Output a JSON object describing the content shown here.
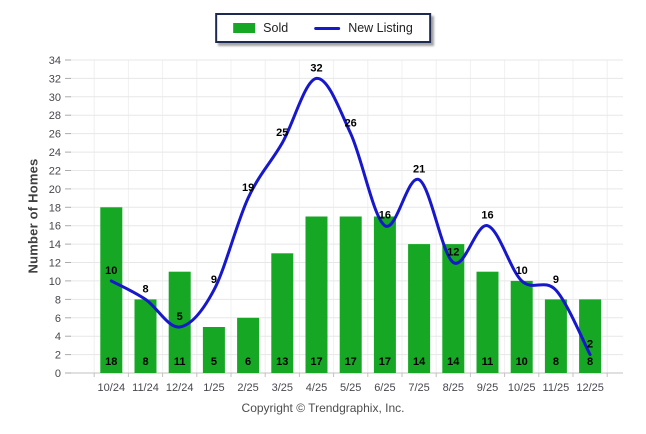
{
  "chart_data": {
    "type": "bar",
    "subtype": "bar+line-combo",
    "title": "",
    "xlabel": "",
    "ylabel": "Number of Homes",
    "ylim": [
      0,
      34
    ],
    "ytick_step": 2,
    "grid": "horizontal-light",
    "legend_position": "top-center",
    "categories": [
      "10/24",
      "11/24",
      "12/24",
      "1/25",
      "2/25",
      "3/25",
      "4/25",
      "5/25",
      "6/25",
      "7/25",
      "8/25",
      "9/25",
      "10/25",
      "11/25",
      "12/25"
    ],
    "series": [
      {
        "name": "Sold",
        "type": "bar",
        "color": "#16a724",
        "values": [
          18,
          8,
          11,
          5,
          6,
          13,
          17,
          17,
          17,
          14,
          14,
          11,
          10,
          8,
          8
        ]
      },
      {
        "name": "New Listing",
        "type": "line",
        "color": "#1717cc",
        "values": [
          10,
          8,
          5,
          9,
          19,
          25,
          32,
          26,
          16,
          21,
          12,
          16,
          10,
          9,
          2
        ]
      }
    ]
  },
  "footer": {
    "copyright": "Copyright © Trendgraphix, Inc."
  },
  "colors": {
    "bar_green": "#16a724",
    "line_blue": "#1717cc",
    "gridline": "#e7e7e7",
    "axis_line": "#c2c2c2",
    "tick_label": "#47474f",
    "data_label": "#000000",
    "legend_border": "#1b2a4e"
  }
}
